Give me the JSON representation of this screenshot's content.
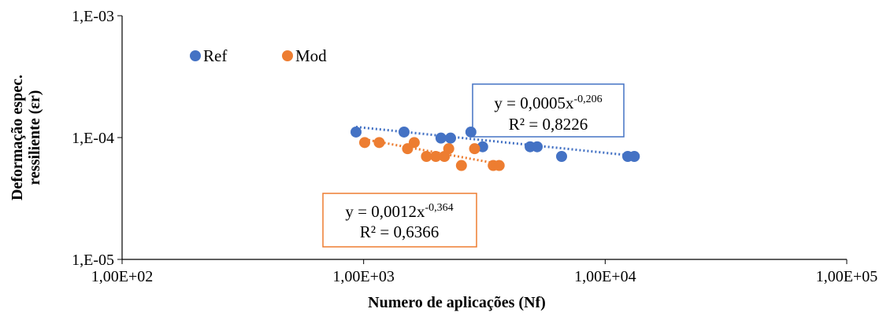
{
  "chart_data": {
    "type": "scatter",
    "xlabel": "Numero de aplicações (Nf)",
    "ylabel": [
      "Deformação espec.",
      "ressiliente (εr)"
    ],
    "xscale": "log",
    "yscale": "log",
    "xlim": [
      100,
      100000
    ],
    "ylim": [
      1e-05,
      0.001
    ],
    "xticks": [
      {
        "value": 100,
        "label": "1,00E+02"
      },
      {
        "value": 1000,
        "label": "1,00E+03"
      },
      {
        "value": 10000,
        "label": "1,00E+04"
      },
      {
        "value": 100000,
        "label": "1,00E+05"
      }
    ],
    "yticks": [
      {
        "value": 1e-05,
        "label": "1,E-05"
      },
      {
        "value": 0.0001,
        "label": "1,E-04"
      },
      {
        "value": 0.001,
        "label": "1,E-03"
      }
    ],
    "legend": "top-left",
    "series": [
      {
        "name": "Ref",
        "color": "#4472c4",
        "x": [
          930,
          1470,
          2090,
          2290,
          2780,
          3110,
          4890,
          5230,
          6600,
          12400,
          13200
        ],
        "values": [
          0.000111,
          0.000111,
          9.9e-05,
          9.9e-05,
          0.000111,
          8.4e-05,
          8.4e-05,
          8.4e-05,
          7e-05,
          7e-05,
          7e-05
        ],
        "trendline": {
          "a": 0.0005,
          "b": -0.206,
          "equation": "y = 0,0005x",
          "exponent": "-0,206",
          "r2": "R² = 0,8226"
        }
      },
      {
        "name": "Mod",
        "color": "#ed7d31",
        "x": [
          1010,
          1160,
          1520,
          1620,
          1820,
          1990,
          2160,
          2250,
          2540,
          2880,
          3440,
          3640
        ],
        "values": [
          9.1e-05,
          9.1e-05,
          8.1e-05,
          9.1e-05,
          7e-05,
          7e-05,
          7e-05,
          8.1e-05,
          5.9e-05,
          8.1e-05,
          5.9e-05,
          5.9e-05
        ],
        "trendline": {
          "a": 0.0012,
          "b": -0.364,
          "equation": "y = 0,0012x",
          "exponent": "-0,364",
          "r2": "R² = 0,6366"
        }
      }
    ]
  }
}
